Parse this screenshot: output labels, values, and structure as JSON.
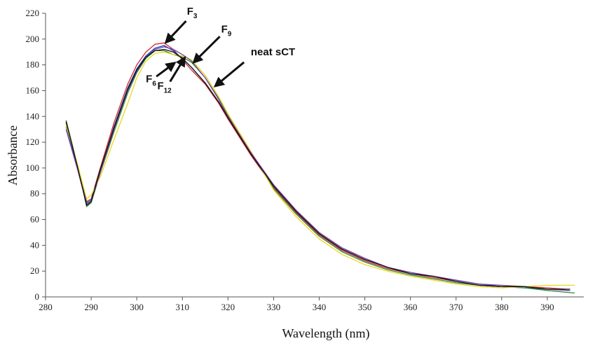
{
  "chart_data": {
    "type": "line",
    "title": "",
    "xlabel": "Wavelength (nm)",
    "ylabel": "Absorbance",
    "xlim": [
      280,
      398
    ],
    "ylim": [
      0,
      220
    ],
    "xticks": [
      280,
      290,
      300,
      310,
      320,
      330,
      340,
      350,
      360,
      370,
      380,
      390
    ],
    "yticks": [
      0,
      20,
      40,
      60,
      80,
      100,
      120,
      140,
      160,
      180,
      200,
      220
    ],
    "grid": false,
    "legend": "none",
    "series": [
      {
        "color": "#d62728",
        "points": [
          [
            284.5,
            135
          ],
          [
            287,
            100
          ],
          [
            289,
            74
          ],
          [
            290,
            76
          ],
          [
            292,
            100
          ],
          [
            295,
            135
          ],
          [
            298,
            165
          ],
          [
            300,
            180
          ],
          [
            302,
            190
          ],
          [
            304,
            196
          ],
          [
            306,
            197
          ],
          [
            308,
            192
          ],
          [
            310,
            184
          ],
          [
            312,
            176
          ],
          [
            315,
            165
          ],
          [
            318,
            150
          ],
          [
            320,
            138
          ],
          [
            325,
            110
          ],
          [
            330,
            85
          ],
          [
            335,
            65
          ],
          [
            340,
            48
          ],
          [
            345,
            36
          ],
          [
            350,
            28
          ],
          [
            355,
            22
          ],
          [
            360,
            18
          ],
          [
            365,
            15
          ],
          [
            370,
            12
          ],
          [
            375,
            9
          ],
          [
            380,
            8
          ],
          [
            385,
            8
          ],
          [
            390,
            7
          ],
          [
            394,
            6
          ]
        ]
      },
      {
        "color": "#1f3fbf",
        "points": [
          [
            284.5,
            132
          ],
          [
            287,
            100
          ],
          [
            289,
            73
          ],
          [
            290,
            75
          ],
          [
            292,
            98
          ],
          [
            295,
            132
          ],
          [
            298,
            162
          ],
          [
            300,
            177
          ],
          [
            302,
            187
          ],
          [
            304,
            193
          ],
          [
            306,
            195
          ],
          [
            308,
            191
          ],
          [
            310,
            185
          ],
          [
            312,
            178
          ],
          [
            315,
            166
          ],
          [
            318,
            151
          ],
          [
            320,
            139
          ],
          [
            325,
            111
          ],
          [
            330,
            86
          ],
          [
            335,
            66
          ],
          [
            340,
            49
          ],
          [
            345,
            37
          ],
          [
            350,
            29
          ],
          [
            355,
            23
          ],
          [
            360,
            18
          ],
          [
            365,
            16
          ],
          [
            370,
            13
          ],
          [
            375,
            10
          ],
          [
            380,
            8
          ],
          [
            385,
            7
          ],
          [
            390,
            6
          ],
          [
            395,
            5
          ]
        ]
      },
      {
        "color": "#2c8c3a",
        "points": [
          [
            284.5,
            137
          ],
          [
            287,
            102
          ],
          [
            289,
            70
          ],
          [
            290,
            73
          ],
          [
            292,
            96
          ],
          [
            295,
            128
          ],
          [
            298,
            158
          ],
          [
            300,
            174
          ],
          [
            302,
            185
          ],
          [
            304,
            191
          ],
          [
            306,
            191
          ],
          [
            308,
            188
          ],
          [
            310,
            186
          ],
          [
            312,
            182
          ],
          [
            315,
            170
          ],
          [
            318,
            154
          ],
          [
            320,
            141
          ],
          [
            325,
            112
          ],
          [
            330,
            84
          ],
          [
            335,
            64
          ],
          [
            340,
            47
          ],
          [
            345,
            35
          ],
          [
            350,
            27
          ],
          [
            355,
            21
          ],
          [
            360,
            17
          ],
          [
            365,
            14
          ],
          [
            370,
            11
          ],
          [
            375,
            9
          ],
          [
            380,
            8
          ],
          [
            385,
            7
          ],
          [
            390,
            5
          ],
          [
            396,
            3
          ]
        ]
      },
      {
        "color": "#e8d820",
        "points": [
          [
            284.5,
            133
          ],
          [
            287,
            103
          ],
          [
            289,
            76
          ],
          [
            290,
            79
          ],
          [
            292,
            93
          ],
          [
            295,
            122
          ],
          [
            298,
            150
          ],
          [
            300,
            170
          ],
          [
            302,
            183
          ],
          [
            304,
            189
          ],
          [
            306,
            190
          ],
          [
            308,
            188
          ],
          [
            310,
            187
          ],
          [
            312,
            184
          ],
          [
            315,
            172
          ],
          [
            318,
            155
          ],
          [
            320,
            142
          ],
          [
            325,
            113
          ],
          [
            330,
            83
          ],
          [
            335,
            62
          ],
          [
            340,
            45
          ],
          [
            345,
            33
          ],
          [
            350,
            25
          ],
          [
            355,
            20
          ],
          [
            360,
            16
          ],
          [
            365,
            13
          ],
          [
            370,
            10
          ],
          [
            375,
            8
          ],
          [
            380,
            7
          ],
          [
            385,
            8
          ],
          [
            390,
            9
          ],
          [
            396,
            9
          ]
        ]
      },
      {
        "color": "#7a3fa6",
        "points": [
          [
            284.5,
            130
          ],
          [
            287,
            99
          ],
          [
            289,
            72
          ],
          [
            290,
            74
          ],
          [
            292,
            97
          ],
          [
            295,
            130
          ],
          [
            298,
            160
          ],
          [
            300,
            175
          ],
          [
            302,
            186
          ],
          [
            304,
            192
          ],
          [
            306,
            194
          ],
          [
            308,
            192
          ],
          [
            310,
            188
          ],
          [
            312,
            183
          ],
          [
            315,
            170
          ],
          [
            318,
            153
          ],
          [
            320,
            140
          ],
          [
            325,
            112
          ],
          [
            330,
            87
          ],
          [
            335,
            67
          ],
          [
            340,
            50
          ],
          [
            345,
            38
          ],
          [
            350,
            30
          ],
          [
            355,
            23
          ],
          [
            360,
            19
          ],
          [
            365,
            16
          ],
          [
            370,
            13
          ],
          [
            375,
            10
          ],
          [
            380,
            9
          ],
          [
            385,
            8
          ],
          [
            390,
            6
          ],
          [
            395,
            5
          ]
        ]
      },
      {
        "color": "#111111",
        "points": [
          [
            284.5,
            136
          ],
          [
            287,
            101
          ],
          [
            289,
            71
          ],
          [
            290,
            74
          ],
          [
            292,
            99
          ],
          [
            295,
            131
          ],
          [
            298,
            161
          ],
          [
            300,
            176
          ],
          [
            302,
            186
          ],
          [
            304,
            191
          ],
          [
            306,
            192
          ],
          [
            308,
            190
          ],
          [
            310,
            185
          ],
          [
            312,
            178
          ],
          [
            315,
            166
          ],
          [
            318,
            151
          ],
          [
            320,
            139
          ],
          [
            325,
            111
          ],
          [
            330,
            86
          ],
          [
            335,
            66
          ],
          [
            340,
            49
          ],
          [
            345,
            37
          ],
          [
            350,
            29
          ],
          [
            355,
            23
          ],
          [
            360,
            18
          ],
          [
            365,
            16
          ],
          [
            370,
            12
          ],
          [
            375,
            9
          ],
          [
            380,
            8
          ],
          [
            385,
            8
          ],
          [
            390,
            6
          ],
          [
            395,
            6
          ]
        ]
      }
    ],
    "annotations": [
      {
        "main": "F",
        "sub": "3",
        "text_x": 311,
        "text_y": 219,
        "arrow_from": [
          310.8,
          214
        ],
        "arrow_to": [
          306.4,
          197.5
        ]
      },
      {
        "main": "F",
        "sub": "9",
        "text_x": 318.5,
        "text_y": 205,
        "arrow_from": [
          318.2,
          202
        ],
        "arrow_to": [
          312.5,
          182
        ]
      },
      {
        "main": "neat sCT",
        "sub": "",
        "text_x": 325,
        "text_y": 187.5,
        "arrow_from": [
          323.5,
          182
        ],
        "arrow_to": [
          317.2,
          163.5
        ]
      },
      {
        "main": "F",
        "sub": "6",
        "text_x": 302,
        "text_y": 166.5,
        "arrow_from": [
          304.3,
          171
        ],
        "arrow_to": [
          308.3,
          181.5
        ]
      },
      {
        "main": "F",
        "sub": "12",
        "text_x": 304.5,
        "text_y": 161,
        "arrow_from": [
          307.3,
          167
        ],
        "arrow_to": [
          310.5,
          185.5
        ]
      }
    ]
  }
}
